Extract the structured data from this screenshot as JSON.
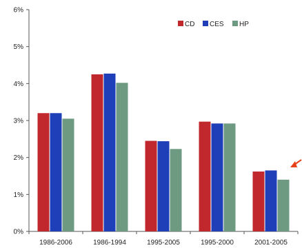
{
  "chart_data": {
    "type": "bar",
    "categories": [
      "1986-2006",
      "1986-1994",
      "1995-2005",
      "1995-2000",
      "2001-2005"
    ],
    "series": [
      {
        "name": "CD",
        "color": "#c0282d",
        "values": [
          3.2,
          4.25,
          2.45,
          2.97,
          1.62
        ]
      },
      {
        "name": "CES",
        "color": "#1f3fb8",
        "values": [
          3.2,
          4.27,
          2.44,
          2.92,
          1.65
        ]
      },
      {
        "name": "HP",
        "color": "#6f9a82",
        "values": [
          3.05,
          4.02,
          2.23,
          2.92,
          1.4
        ]
      }
    ],
    "ylim": [
      0,
      6
    ],
    "yticks": [
      0,
      1,
      2,
      3,
      4,
      5,
      6
    ],
    "ytick_labels": [
      "0%",
      "1%",
      "2%",
      "3%",
      "4%",
      "5%",
      "6%"
    ],
    "title": "",
    "xlabel": "",
    "ylabel": "",
    "grid": false,
    "legend_position": "top-right",
    "annotation": {
      "type": "arrow",
      "color": "#e8401a",
      "points_to": "2001-2005"
    }
  }
}
